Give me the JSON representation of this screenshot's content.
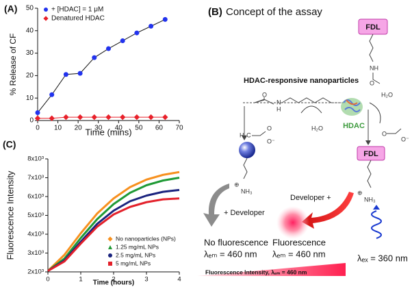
{
  "chart_data": [
    {
      "type": "scatter",
      "panel_label": "(A)",
      "xlabel": "Time (mins)",
      "ylabel": "% Release of CF",
      "x": [
        0,
        7,
        14,
        21,
        28,
        35,
        42,
        49,
        56,
        63
      ],
      "series": [
        {
          "name": "+ [HDAC] = 1 μM",
          "color": "#2233ee",
          "line_color": "#111111",
          "marker": "circle",
          "values": [
            3.5,
            11.5,
            20.5,
            21,
            28,
            32,
            35.5,
            39,
            42,
            45
          ]
        },
        {
          "name": "Denatured HDAC",
          "color": "#e8202a",
          "line_color": "#e8202a",
          "marker": "diamond",
          "values": [
            1,
            1,
            1.5,
            1.5,
            1.5,
            1.5,
            1.5,
            1.5,
            1.5,
            1.5
          ]
        }
      ],
      "xlim": [
        0,
        70
      ],
      "xticks": [
        0,
        10,
        20,
        30,
        40,
        50,
        60,
        70
      ],
      "ylim": [
        0,
        50
      ],
      "yticks": [
        0,
        10,
        20,
        30,
        40,
        50
      ],
      "legend": "upper left"
    },
    {
      "type": "line",
      "panel_label": "(C)",
      "xlabel": "Time (hours)",
      "ylabel": "Fluorescence Intensity",
      "x": [
        0,
        0.5,
        1,
        1.5,
        2,
        2.5,
        3,
        3.5,
        4
      ],
      "series": [
        {
          "name": "No nanoparticles (NPs)",
          "color": "#f7901e",
          "marker": "diamond",
          "values": [
            2050,
            2900,
            4050,
            5100,
            5900,
            6500,
            6900,
            7150,
            7300
          ]
        },
        {
          "name": "1.25 mg/mL NPs",
          "color": "#1f9a35",
          "marker": "triangle",
          "values": [
            2050,
            2700,
            3800,
            4800,
            5600,
            6200,
            6600,
            6850,
            7000
          ]
        },
        {
          "name": "2.5 mg/mL NPs",
          "color": "#1a237e",
          "marker": "circle",
          "values": [
            2050,
            2600,
            3600,
            4550,
            5250,
            5750,
            6050,
            6250,
            6350
          ]
        },
        {
          "name": "5 mg/mL NPs",
          "color": "#e3202a",
          "marker": "square",
          "values": [
            2050,
            2550,
            3500,
            4400,
            5050,
            5450,
            5700,
            5850,
            5900
          ]
        }
      ],
      "xlim": [
        0,
        4
      ],
      "xticks": [
        0,
        1,
        2,
        3,
        4
      ],
      "ylim": [
        2000,
        8000
      ],
      "yticks": [
        {
          "value": 2000,
          "label": "2x10³"
        },
        {
          "value": 3000,
          "label": "3x10³"
        },
        {
          "value": 4000,
          "label": "4x10³"
        },
        {
          "value": 5000,
          "label": "5x10³"
        },
        {
          "value": 6000,
          "label": "6x10³"
        },
        {
          "value": 7000,
          "label": "7x10³"
        },
        {
          "value": 8000,
          "label": "8x10³"
        }
      ],
      "legend": "lower right"
    }
  ],
  "diagram": {
    "panel_label": "(B)",
    "title": "Concept of the assay",
    "fdl_top": "FDL",
    "fdl_bottom": "FDL",
    "substrate_label": "HDAC-responsive nanoparticles",
    "enzyme": "HDAC",
    "water_left": "H₂O",
    "water_right": "H₂O",
    "nh_top": "NH",
    "o_top": "O",
    "o_sub": "O",
    "n_sub": "N",
    "h_sub": "H",
    "acetate_left_ch3": "H₃C",
    "acetate_left_o": "O",
    "acetate_left_ominus": "O⁻",
    "acetate_right_o": "O",
    "acetate_right_ominus": "O⁻",
    "amine_left": "NH₃",
    "amine_right": "NH₃",
    "plus_left": "⊕",
    "plus_right": "⊕",
    "developer_left": "+ Developer",
    "developer_right": "Developer +",
    "no_fluorescence": "No fluorescence",
    "no_fluorescence_em": "λₑₘ = 460 nm",
    "fluorescence": "Fluorescence",
    "fluorescence_em": "λₑₘ = 460 nm",
    "excitation": "λₑₓ = 360 nm",
    "intensity_bar": "Fluorescence Intensity, λₑₘ = 460 nm"
  }
}
